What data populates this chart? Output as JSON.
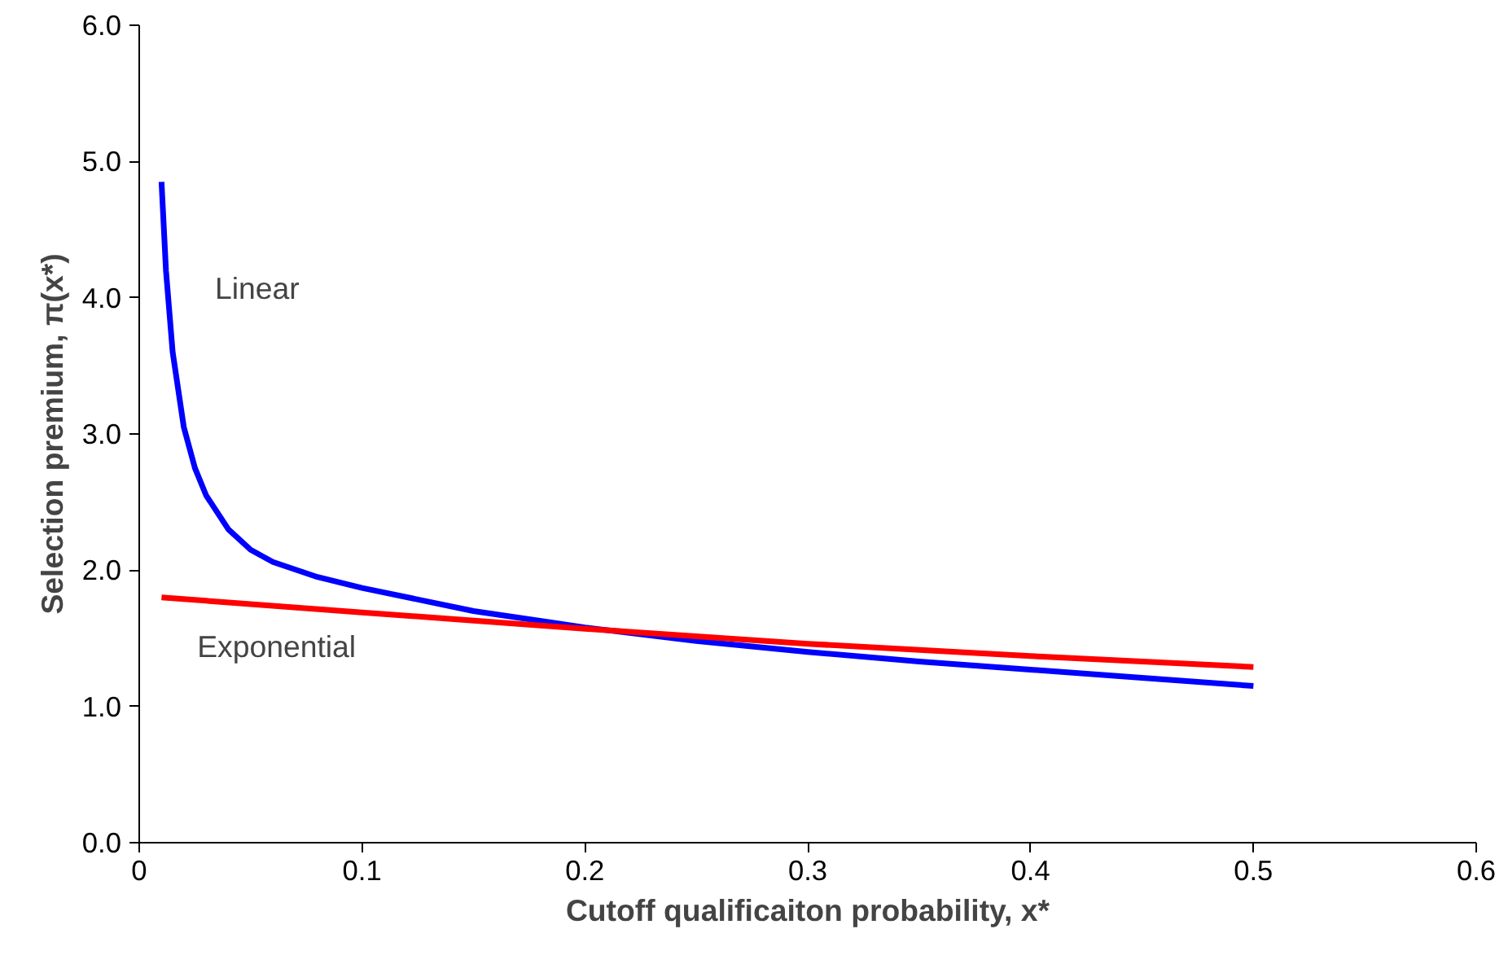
{
  "chart_data": {
    "type": "line",
    "xlabel": "Cutoff qualificaiton probability, x*",
    "ylabel": "Selection premium, π(x*)",
    "xlim": [
      0,
      0.6
    ],
    "ylim": [
      0,
      6
    ],
    "xticks": [
      0,
      0.1,
      0.2,
      0.3,
      0.4,
      0.5,
      0.6
    ],
    "yticks": [
      {
        "value": 0,
        "label": "0.0"
      },
      {
        "value": 1,
        "label": "1.0"
      },
      {
        "value": 2,
        "label": "2.0"
      },
      {
        "value": 3,
        "label": "3.0"
      },
      {
        "value": 4,
        "label": "4.0"
      },
      {
        "value": 5,
        "label": "5.0"
      },
      {
        "value": 6,
        "label": "6.0"
      }
    ],
    "grid": false,
    "legend": false,
    "marker": "none",
    "line_style": "solid",
    "series": [
      {
        "name": "Linear",
        "color": "#0000ff",
        "x": [
          0.01,
          0.012,
          0.015,
          0.02,
          0.025,
          0.03,
          0.04,
          0.05,
          0.06,
          0.08,
          0.1,
          0.15,
          0.2,
          0.25,
          0.3,
          0.35,
          0.4,
          0.45,
          0.5
        ],
        "values": [
          4.85,
          4.2,
          3.6,
          3.05,
          2.75,
          2.55,
          2.3,
          2.15,
          2.06,
          1.95,
          1.87,
          1.7,
          1.58,
          1.48,
          1.4,
          1.33,
          1.27,
          1.21,
          1.15
        ]
      },
      {
        "name": "Exponential",
        "color": "#ff0000",
        "x": [
          0.01,
          0.1,
          0.2,
          0.3,
          0.4,
          0.5
        ],
        "values": [
          1.8,
          1.69,
          1.57,
          1.46,
          1.37,
          1.29
        ]
      }
    ]
  }
}
